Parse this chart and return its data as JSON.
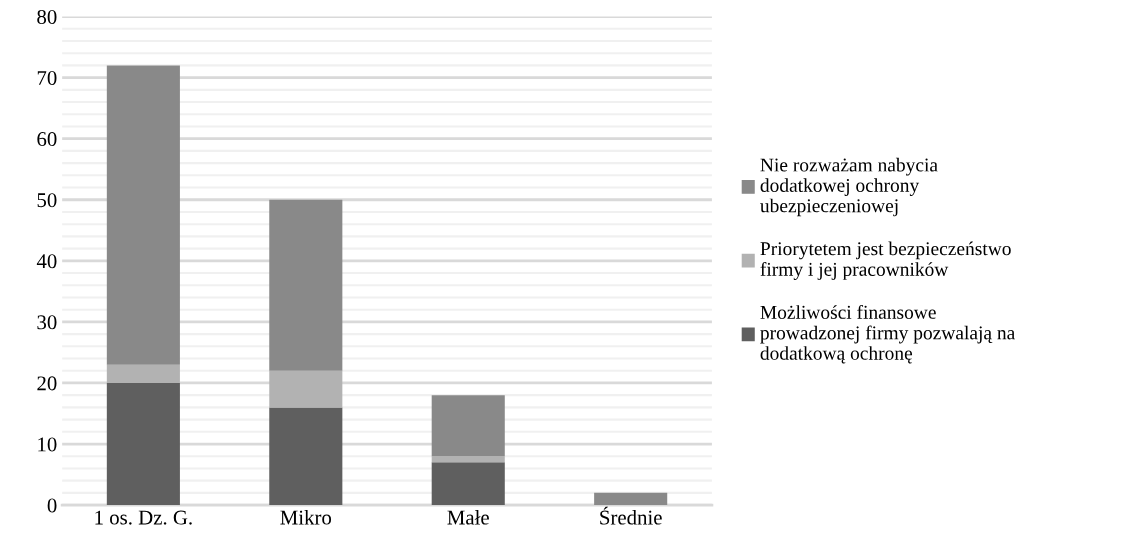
{
  "chart_data": {
    "type": "bar",
    "stacked": true,
    "categories": [
      "1 os. Dz. G.",
      "Mikro",
      "Małe",
      "Średnie"
    ],
    "series": [
      {
        "name": "Możliwości finansowe\nprowadzonej firmy pozwalają na\ndodatkową ochronę",
        "color": "#5f5f5f",
        "values": [
          20,
          16,
          7,
          0
        ]
      },
      {
        "name": "Priorytetem jest bezpieczeństwo\nfirmy i jej pracowników",
        "color": "#b2b2b2",
        "values": [
          3,
          6,
          1,
          0
        ]
      },
      {
        "name": "Nie rozważam nabycia\ndodatkowej ochrony\nubezpieczeniowej",
        "color": "#898989",
        "values": [
          49,
          28,
          10,
          2
        ]
      }
    ],
    "ylim": [
      0,
      80
    ],
    "yticks": [
      0,
      {
        "value": 2,
        "label": null
      },
      {
        "value": 4,
        "label": null
      },
      {
        "value": 6,
        "label": null
      },
      {
        "value": 8,
        "label": null
      },
      10,
      {
        "value": 12,
        "label": null
      },
      {
        "value": 14,
        "label": null
      },
      {
        "value": 16,
        "label": null
      },
      {
        "value": 18,
        "label": null
      },
      20,
      {
        "value": 22,
        "label": null
      },
      {
        "value": 24,
        "label": null
      },
      {
        "value": 26,
        "label": null
      },
      {
        "value": 28,
        "label": null
      },
      30,
      {
        "value": 32,
        "label": null
      },
      {
        "value": 34,
        "label": null
      },
      {
        "value": 36,
        "label": null
      },
      {
        "value": 38,
        "label": null
      },
      40,
      {
        "value": 42,
        "label": null
      },
      {
        "value": 44,
        "label": null
      },
      {
        "value": 46,
        "label": null
      },
      {
        "value": 48,
        "label": null
      },
      50,
      {
        "value": 52,
        "label": null
      },
      {
        "value": 54,
        "label": null
      },
      {
        "value": 56,
        "label": null
      },
      {
        "value": 58,
        "label": null
      },
      60,
      {
        "value": 62,
        "label": null
      },
      {
        "value": 64,
        "label": null
      },
      {
        "value": 66,
        "label": null
      },
      {
        "value": 68,
        "label": null
      },
      70,
      {
        "value": 72,
        "label": null
      },
      {
        "value": 74,
        "label": null
      },
      {
        "value": 76,
        "label": null
      },
      {
        "value": 78,
        "label": null
      },
      80
    ],
    "grid": "y",
    "legend": "right"
  }
}
